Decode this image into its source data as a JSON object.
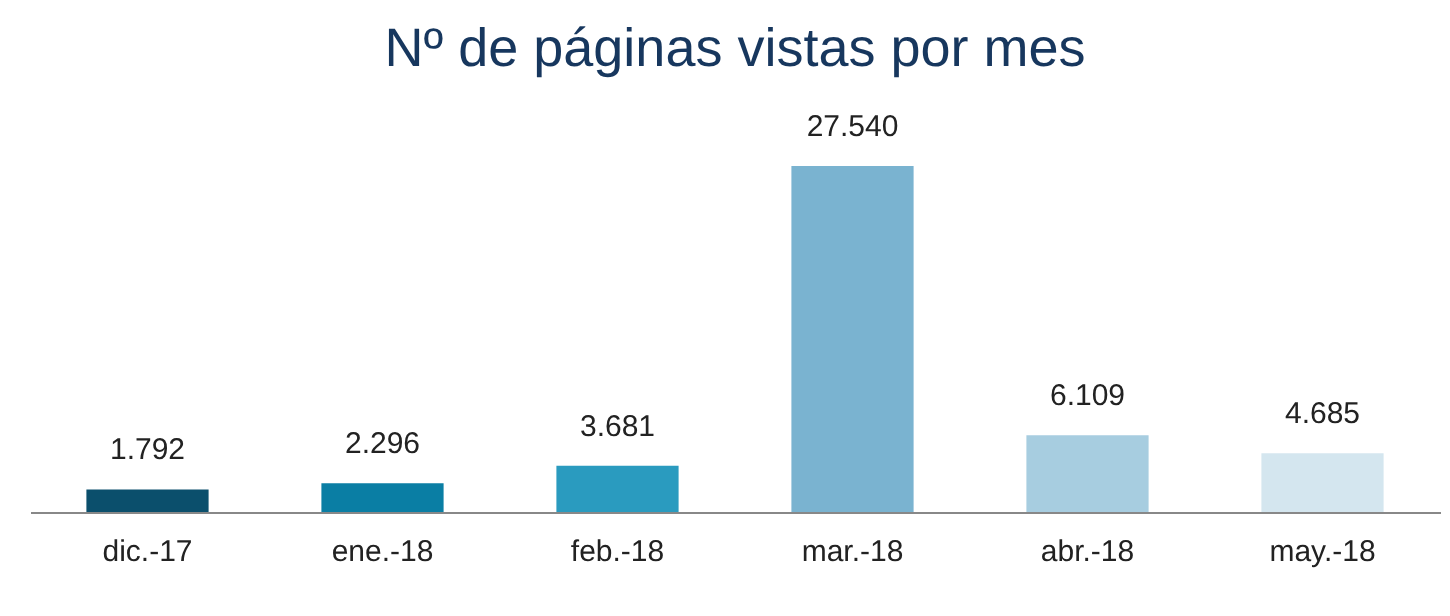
{
  "chart_data": {
    "type": "bar",
    "title": "Nº de páginas vistas por mes",
    "categories": [
      "dic.-17",
      "ene.-18",
      "feb.-18",
      "mar.-18",
      "abr.-18",
      "may.-18"
    ],
    "values": [
      1792,
      2296,
      3681,
      27540,
      6109,
      4685
    ],
    "value_labels": [
      "1.792",
      "2.296",
      "3.681",
      "27.540",
      "6.109",
      "4.685"
    ],
    "colors": [
      "#0b4f6c",
      "#0a7ea4",
      "#2a9bbf",
      "#7ab3d0",
      "#a7cde0",
      "#d4e6ef"
    ],
    "grid": false,
    "legend": false
  }
}
